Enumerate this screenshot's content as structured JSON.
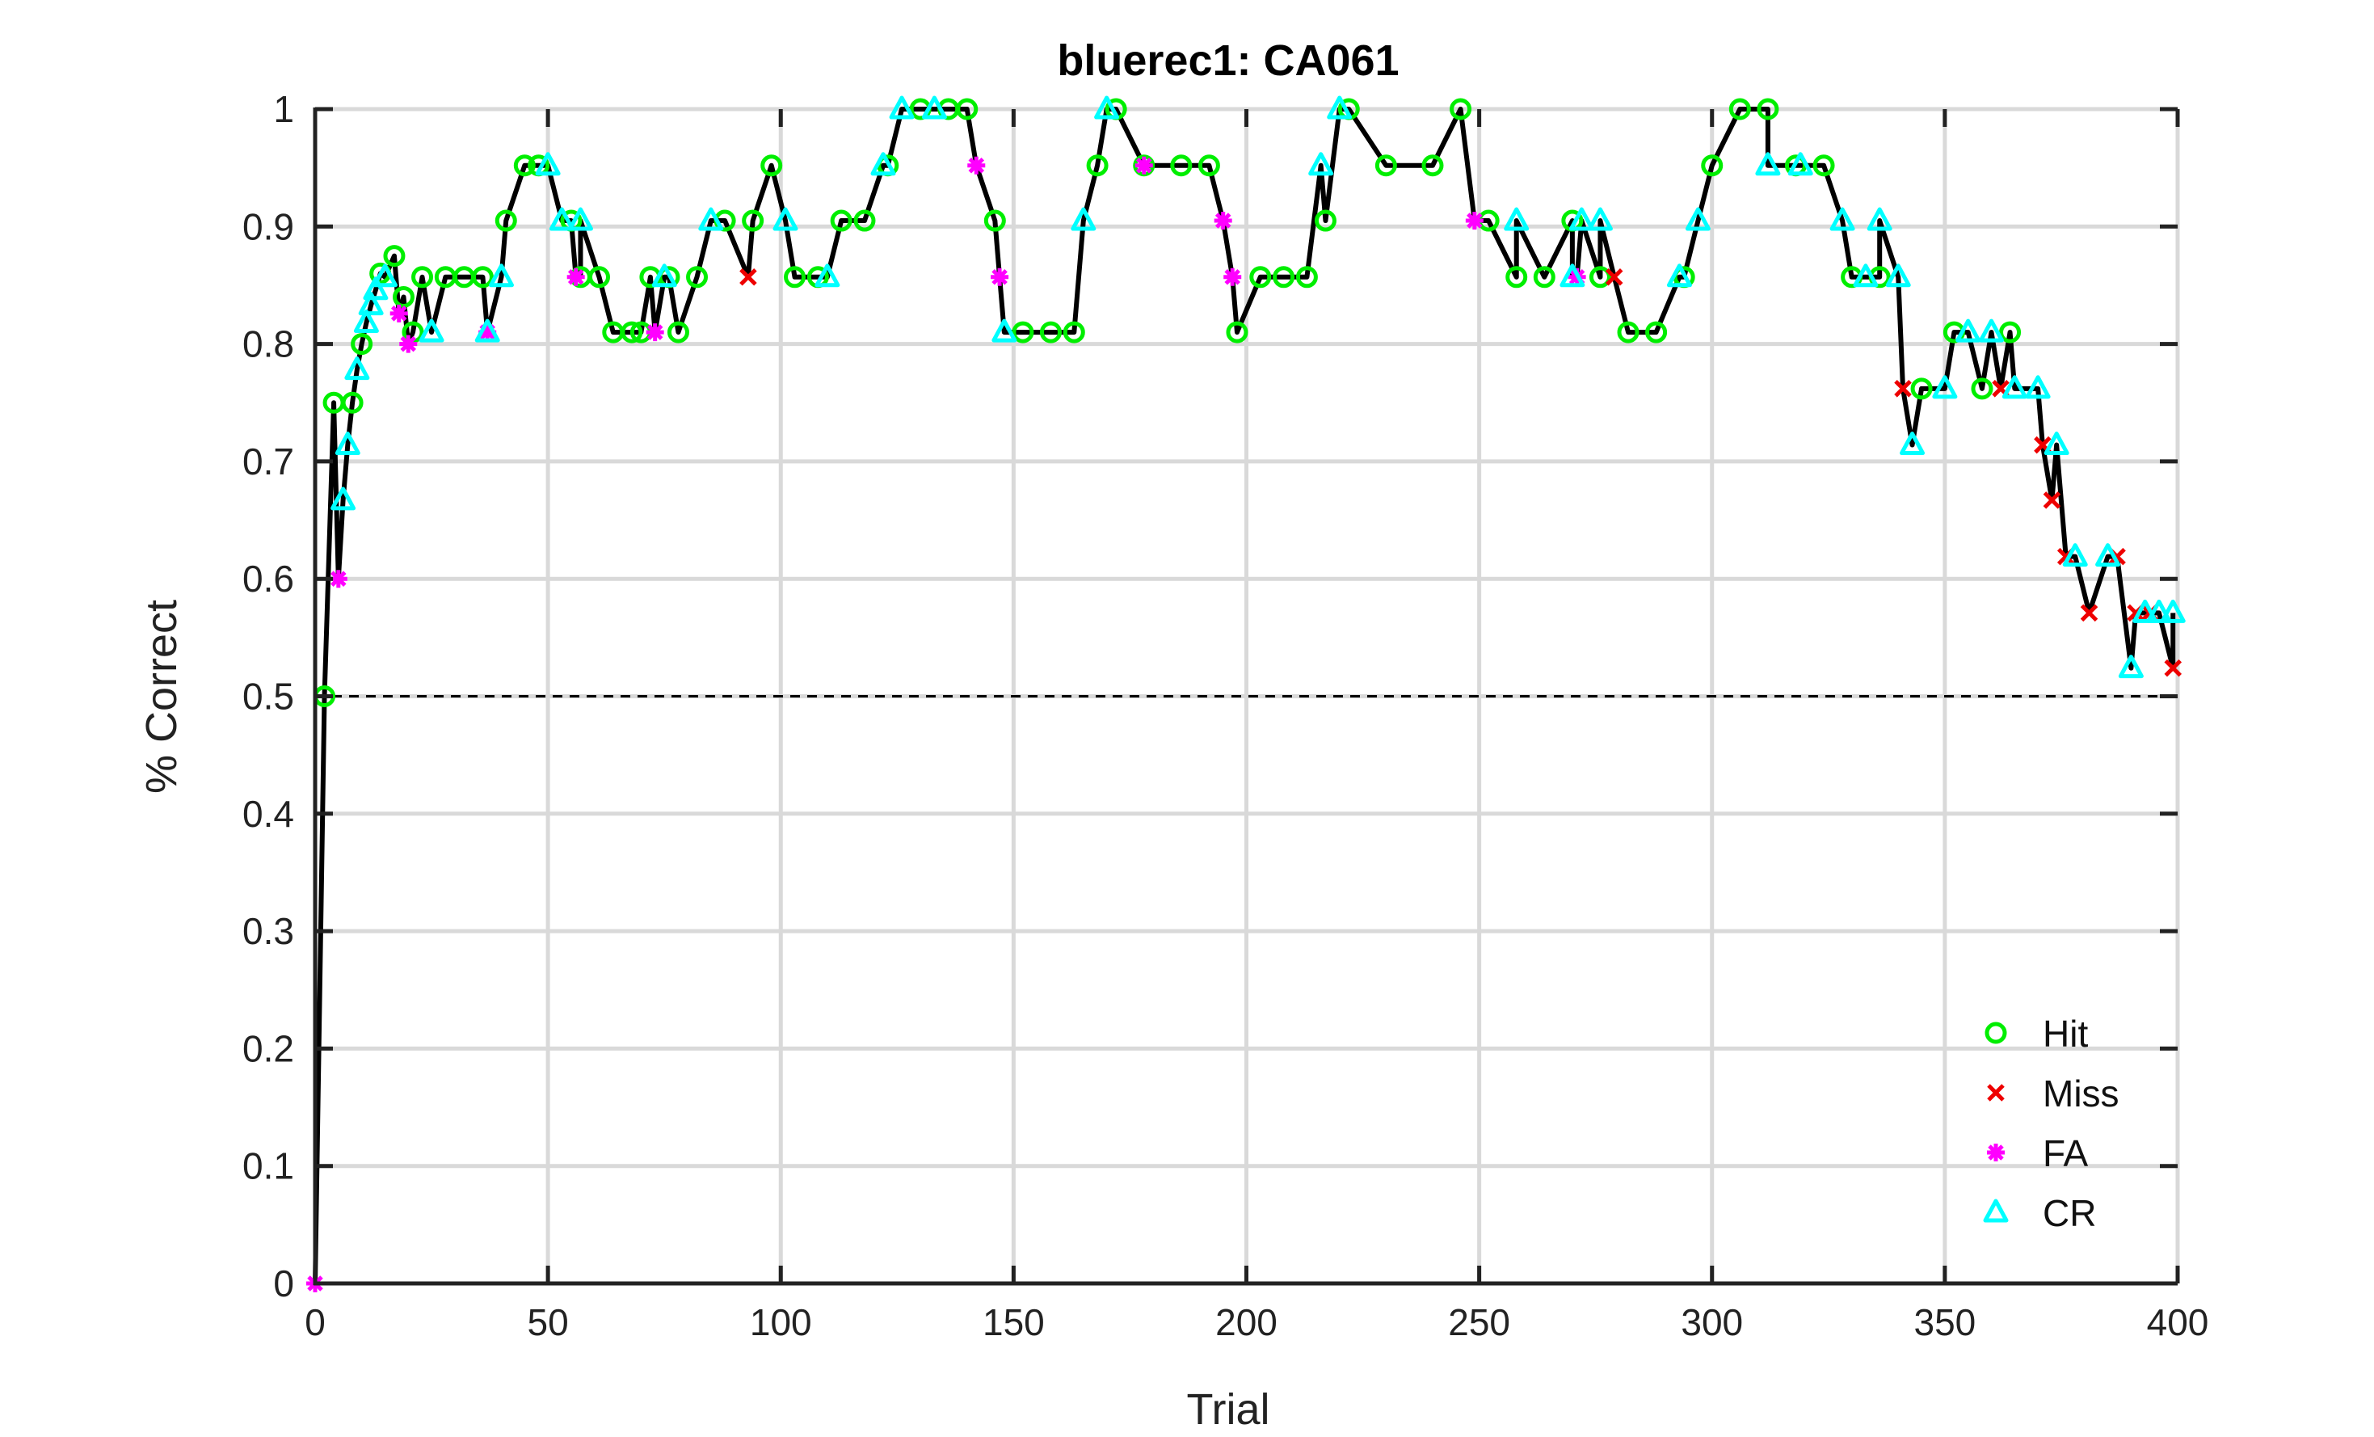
{
  "chart_data": {
    "type": "line",
    "title": "bluerec1: CA061",
    "xlabel": "Trial",
    "ylabel": "% Correct",
    "xlim": [
      0,
      400
    ],
    "ylim": [
      0,
      1
    ],
    "xticks": [
      0,
      50,
      100,
      150,
      200,
      250,
      300,
      350,
      400
    ],
    "yticks": [
      0,
      0.1,
      0.2,
      0.3,
      0.4,
      0.5,
      0.6,
      0.7,
      0.8,
      0.9,
      1
    ],
    "xtick_labels": [
      "0",
      "50",
      "100",
      "150",
      "200",
      "250",
      "300",
      "350",
      "400"
    ],
    "ytick_labels": [
      "0",
      "0.1",
      "0.2",
      "0.3",
      "0.4",
      "0.5",
      "0.6",
      "0.7",
      "0.8",
      "0.9",
      "1"
    ],
    "grid": true,
    "legend_position": "bottom-right",
    "reference_line": {
      "y": 0.5,
      "style": "dashed"
    },
    "line_color": "#000000",
    "series": [
      {
        "name": "Hit",
        "marker": "circle",
        "color": "#00ee00",
        "x": [
          2,
          4,
          8,
          10,
          14,
          17,
          19,
          21,
          23,
          28,
          32,
          36,
          41,
          45,
          48,
          55,
          57,
          61,
          64,
          68,
          70,
          72,
          76,
          78,
          82,
          88,
          94,
          98,
          103,
          108,
          113,
          118,
          123,
          130,
          136,
          140,
          146,
          152,
          158,
          163,
          168,
          172,
          178,
          186,
          192,
          198,
          203,
          208,
          213,
          217,
          222,
          230,
          240,
          246,
          252,
          258,
          264,
          270,
          276,
          282,
          288,
          294,
          300,
          306,
          312,
          318,
          324,
          330,
          336,
          345,
          352,
          358,
          364
        ],
        "y": [
          0.5,
          0.75,
          0.75,
          0.8,
          0.86,
          0.875,
          0.84,
          0.81,
          0.857,
          0.857,
          0.857,
          0.857,
          0.905,
          0.952,
          0.952,
          0.905,
          0.857,
          0.857,
          0.81,
          0.81,
          0.81,
          0.857,
          0.857,
          0.81,
          0.857,
          0.905,
          0.905,
          0.952,
          0.857,
          0.857,
          0.905,
          0.905,
          0.952,
          1,
          1,
          1,
          0.905,
          0.81,
          0.81,
          0.81,
          0.952,
          1,
          0.952,
          0.952,
          0.952,
          0.81,
          0.857,
          0.857,
          0.857,
          0.905,
          1,
          0.952,
          0.952,
          1,
          0.905,
          0.857,
          0.857,
          0.905,
          0.857,
          0.81,
          0.81,
          0.857,
          0.952,
          1,
          1,
          0.952,
          0.952,
          0.857,
          0.857,
          0.762,
          0.81,
          0.762,
          0.81
        ]
      },
      {
        "name": "Miss",
        "marker": "x",
        "color": "#ee0000",
        "x": [
          93,
          279,
          341,
          362,
          371,
          373,
          376,
          381,
          387,
          391,
          394,
          399
        ],
        "y": [
          0.857,
          0.857,
          0.762,
          0.762,
          0.714,
          0.667,
          0.619,
          0.571,
          0.619,
          0.571,
          0.571,
          0.524
        ]
      },
      {
        "name": "FA",
        "marker": "asterisk",
        "color": "#ff00ff",
        "x": [
          0,
          5,
          18,
          20,
          37,
          56,
          73,
          142,
          147,
          178,
          195,
          197,
          249,
          271
        ],
        "y": [
          0,
          0.6,
          0.826,
          0.8,
          0.81,
          0.857,
          0.81,
          0.952,
          0.857,
          0.952,
          0.905,
          0.857,
          0.905,
          0.857
        ]
      },
      {
        "name": "CR",
        "marker": "triangle",
        "color": "#00ffff",
        "x": [
          6,
          7,
          9,
          11,
          12,
          13,
          15,
          25,
          37,
          40,
          50,
          53,
          57,
          75,
          85,
          101,
          110,
          122,
          126,
          133,
          148,
          165,
          170,
          216,
          220,
          258,
          270,
          272,
          276,
          293,
          297,
          312,
          319,
          328,
          333,
          336,
          340,
          343,
          350,
          355,
          360,
          365,
          370,
          374,
          378,
          385,
          390,
          393,
          396,
          399
        ],
        "y": [
          0.667,
          0.714,
          0.778,
          0.818,
          0.833,
          0.846,
          0.857,
          0.81,
          0.81,
          0.857,
          0.952,
          0.905,
          0.905,
          0.857,
          0.905,
          0.905,
          0.857,
          0.952,
          1,
          1,
          0.81,
          0.905,
          1,
          0.952,
          1,
          0.905,
          0.857,
          0.905,
          0.905,
          0.857,
          0.905,
          0.952,
          0.952,
          0.905,
          0.857,
          0.905,
          0.857,
          0.714,
          0.762,
          0.81,
          0.81,
          0.762,
          0.762,
          0.714,
          0.619,
          0.619,
          0.524,
          0.571,
          0.571,
          0.571
        ]
      }
    ]
  }
}
